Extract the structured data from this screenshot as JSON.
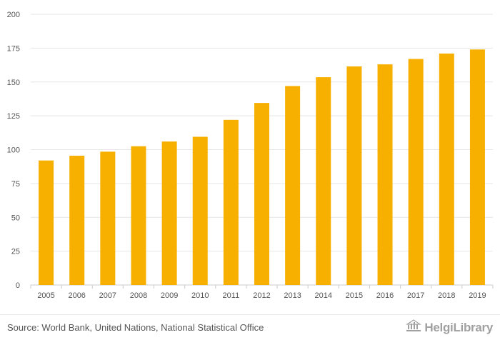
{
  "chart_data": {
    "type": "bar",
    "title": "",
    "xlabel": "",
    "ylabel": "",
    "categories": [
      "2005",
      "2006",
      "2007",
      "2008",
      "2009",
      "2010",
      "2011",
      "2012",
      "2013",
      "2014",
      "2015",
      "2016",
      "2017",
      "2018",
      "2019"
    ],
    "values": [
      92,
      95.5,
      98.5,
      102.5,
      106,
      109.5,
      122,
      134.5,
      147,
      153.5,
      161.5,
      163,
      167,
      171,
      174
    ],
    "ylim": [
      0,
      200
    ],
    "yticks": [
      0,
      25,
      50,
      75,
      100,
      125,
      150,
      175,
      200
    ],
    "bar_color": "#f7af00",
    "grid": true
  },
  "footer": {
    "source": "Source: World Bank, United Nations, National Statistical Office",
    "logo_text": "HelgiLibrary"
  }
}
